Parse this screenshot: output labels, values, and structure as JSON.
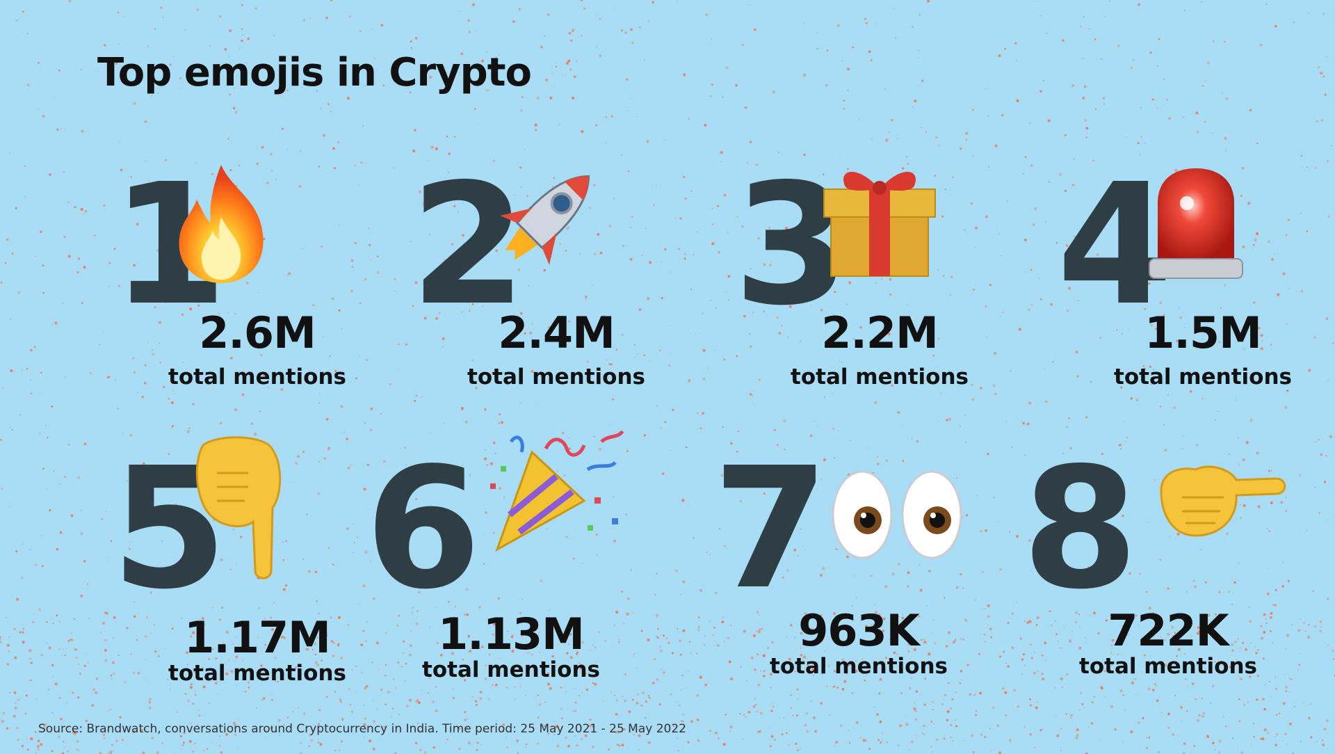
{
  "chart_data": {
    "type": "table",
    "title": "Top emojis in Crypto",
    "unit_label": "total mentions",
    "items": [
      {
        "rank": "1",
        "emoji": "fire-icon",
        "value_label": "2.6M",
        "value": 2600000
      },
      {
        "rank": "2",
        "emoji": "rocket-icon",
        "value_label": "2.4M",
        "value": 2400000
      },
      {
        "rank": "3",
        "emoji": "gift-icon",
        "value_label": "2.2M",
        "value": 2200000
      },
      {
        "rank": "4",
        "emoji": "siren-light-icon",
        "value_label": "1.5M",
        "value": 1500000
      },
      {
        "rank": "5",
        "emoji": "pointing-down-hand-icon",
        "value_label": "1.17M",
        "value": 1170000
      },
      {
        "rank": "6",
        "emoji": "party-popper-icon",
        "value_label": "1.13M",
        "value": 1130000
      },
      {
        "rank": "7",
        "emoji": "eyes-icon",
        "value_label": "963K",
        "value": 963000
      },
      {
        "rank": "8",
        "emoji": "pointing-right-hand-icon",
        "value_label": "722K",
        "value": 722000
      }
    ],
    "source": "Source: Brandwatch, conversations around Cryptocurrency in India. Time period: 25 May 2021 - 25 May 2022"
  },
  "colors": {
    "background": "#a9dcf5",
    "speckle": "#f0704a",
    "rank_numeral": "#2f3d44",
    "text": "#111111"
  }
}
